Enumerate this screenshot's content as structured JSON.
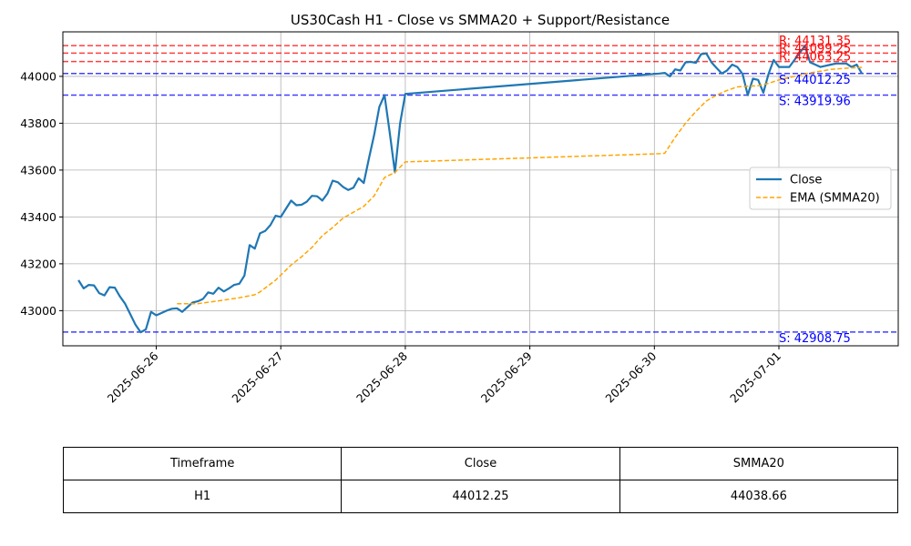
{
  "chart_data": {
    "type": "line",
    "title": "US30Cash H1 - Close vs SMMA20 + Support/Resistance",
    "xlabel": "",
    "ylabel": "",
    "xlim": [
      "2025-06-25 06:00",
      "2025-07-01 23:00"
    ],
    "ylim": [
      42850,
      44190
    ],
    "yticks": [
      43000,
      43200,
      43400,
      43600,
      43800,
      44000
    ],
    "xticks": [
      "2025-06-26",
      "2025-06-27",
      "2025-06-28",
      "2025-06-29",
      "2025-06-30",
      "2025-07-01"
    ],
    "grid": true,
    "legend_position": "center-right",
    "series": [
      {
        "name": "Close",
        "color": "#1f77b4",
        "style": "solid",
        "points": [
          [
            "2025-06-25 09:00",
            43130
          ],
          [
            "2025-06-25 10:00",
            43095
          ],
          [
            "2025-06-25 11:00",
            43110
          ],
          [
            "2025-06-25 12:00",
            43108
          ],
          [
            "2025-06-25 13:00",
            43075
          ],
          [
            "2025-06-25 14:00",
            43065
          ],
          [
            "2025-06-25 15:00",
            43100
          ],
          [
            "2025-06-25 16:00",
            43098
          ],
          [
            "2025-06-25 17:00",
            43060
          ],
          [
            "2025-06-25 18:00",
            43030
          ],
          [
            "2025-06-25 19:00",
            42985
          ],
          [
            "2025-06-25 20:00",
            42940
          ],
          [
            "2025-06-25 21:00",
            42908
          ],
          [
            "2025-06-25 22:00",
            42920
          ],
          [
            "2025-06-25 23:00",
            42995
          ],
          [
            "2025-06-26 00:00",
            42980
          ],
          [
            "2025-06-26 01:00",
            42990
          ],
          [
            "2025-06-26 02:00",
            43000
          ],
          [
            "2025-06-26 03:00",
            43008
          ],
          [
            "2025-06-26 04:00",
            43010
          ],
          [
            "2025-06-26 05:00",
            42995
          ],
          [
            "2025-06-26 06:00",
            43015
          ],
          [
            "2025-06-26 07:00",
            43035
          ],
          [
            "2025-06-26 08:00",
            43040
          ],
          [
            "2025-06-26 09:00",
            43050
          ],
          [
            "2025-06-26 10:00",
            43078
          ],
          [
            "2025-06-26 11:00",
            43072
          ],
          [
            "2025-06-26 12:00",
            43098
          ],
          [
            "2025-06-26 13:00",
            43082
          ],
          [
            "2025-06-26 14:00",
            43095
          ],
          [
            "2025-06-26 15:00",
            43110
          ],
          [
            "2025-06-26 16:00",
            43115
          ],
          [
            "2025-06-26 17:00",
            43150
          ],
          [
            "2025-06-26 18:00",
            43280
          ],
          [
            "2025-06-26 19:00",
            43265
          ],
          [
            "2025-06-26 20:00",
            43330
          ],
          [
            "2025-06-26 21:00",
            43340
          ],
          [
            "2025-06-26 22:00",
            43365
          ],
          [
            "2025-06-26 23:00",
            43405
          ],
          [
            "2025-06-27 00:00",
            43400
          ],
          [
            "2025-06-27 01:00",
            43435
          ],
          [
            "2025-06-27 02:00",
            43470
          ],
          [
            "2025-06-27 03:00",
            43450
          ],
          [
            "2025-06-27 04:00",
            43452
          ],
          [
            "2025-06-27 05:00",
            43465
          ],
          [
            "2025-06-27 06:00",
            43490
          ],
          [
            "2025-06-27 07:00",
            43488
          ],
          [
            "2025-06-27 08:00",
            43470
          ],
          [
            "2025-06-27 09:00",
            43500
          ],
          [
            "2025-06-27 10:00",
            43555
          ],
          [
            "2025-06-27 11:00",
            43548
          ],
          [
            "2025-06-27 12:00",
            43528
          ],
          [
            "2025-06-27 13:00",
            43515
          ],
          [
            "2025-06-27 14:00",
            43525
          ],
          [
            "2025-06-27 15:00",
            43565
          ],
          [
            "2025-06-27 16:00",
            43545
          ],
          [
            "2025-06-27 17:00",
            43650
          ],
          [
            "2025-06-27 18:00",
            43750
          ],
          [
            "2025-06-27 19:00",
            43870
          ],
          [
            "2025-06-27 20:00",
            43920
          ],
          [
            "2025-06-27 21:00",
            43760
          ],
          [
            "2025-06-27 22:00",
            43590
          ],
          [
            "2025-06-27 23:00",
            43800
          ],
          [
            "2025-06-28 00:00",
            43925
          ],
          [
            "2025-06-30 01:00",
            44012
          ],
          [
            "2025-06-30 02:00",
            44015
          ],
          [
            "2025-06-30 03:00",
            44000
          ],
          [
            "2025-06-30 04:00",
            44030
          ],
          [
            "2025-06-30 05:00",
            44025
          ],
          [
            "2025-06-30 06:00",
            44060
          ],
          [
            "2025-06-30 07:00",
            44062
          ],
          [
            "2025-06-30 08:00",
            44058
          ],
          [
            "2025-06-30 09:00",
            44095
          ],
          [
            "2025-06-30 10:00",
            44098
          ],
          [
            "2025-06-30 11:00",
            44060
          ],
          [
            "2025-06-30 12:00",
            44035
          ],
          [
            "2025-06-30 13:00",
            44012
          ],
          [
            "2025-06-30 14:00",
            44025
          ],
          [
            "2025-06-30 15:00",
            44050
          ],
          [
            "2025-06-30 16:00",
            44040
          ],
          [
            "2025-06-30 17:00",
            44010
          ],
          [
            "2025-06-30 18:00",
            43920
          ],
          [
            "2025-06-30 19:00",
            43990
          ],
          [
            "2025-06-30 20:00",
            43985
          ],
          [
            "2025-06-30 21:00",
            43930
          ],
          [
            "2025-06-30 22:00",
            44010
          ],
          [
            "2025-06-30 23:00",
            44070
          ],
          [
            "2025-07-01 00:00",
            44040
          ],
          [
            "2025-07-01 01:00",
            44040
          ],
          [
            "2025-07-01 02:00",
            44040
          ],
          [
            "2025-07-01 03:00",
            44070
          ],
          [
            "2025-07-01 04:00",
            44100
          ],
          [
            "2025-07-01 05:00",
            44130
          ],
          [
            "2025-07-01 06:00",
            44060
          ],
          [
            "2025-07-01 07:00",
            44050
          ],
          [
            "2025-07-01 08:00",
            44040
          ],
          [
            "2025-07-01 09:00",
            44045
          ],
          [
            "2025-07-01 10:00",
            44050
          ],
          [
            "2025-07-01 11:00",
            44055
          ],
          [
            "2025-07-01 12:00",
            44055
          ],
          [
            "2025-07-01 13:00",
            44055
          ],
          [
            "2025-07-01 14:00",
            44040
          ],
          [
            "2025-07-01 15:00",
            44050
          ],
          [
            "2025-07-01 16:00",
            44012
          ]
        ]
      },
      {
        "name": "EMA (SMMA20)",
        "color": "#ffa500",
        "style": "dashed",
        "points": [
          [
            "2025-06-26 04:00",
            43030
          ],
          [
            "2025-06-26 08:00",
            43030
          ],
          [
            "2025-06-26 12:00",
            43042
          ],
          [
            "2025-06-26 16:00",
            43055
          ],
          [
            "2025-06-26 19:00",
            43068
          ],
          [
            "2025-06-26 20:00",
            43080
          ],
          [
            "2025-06-26 23:00",
            43130
          ],
          [
            "2025-06-27 02:00",
            43195
          ],
          [
            "2025-06-27 04:00",
            43230
          ],
          [
            "2025-06-27 06:00",
            43270
          ],
          [
            "2025-06-27 08:00",
            43320
          ],
          [
            "2025-06-27 10:00",
            43355
          ],
          [
            "2025-06-27 12:00",
            43395
          ],
          [
            "2025-06-27 14:00",
            43420
          ],
          [
            "2025-06-27 16:00",
            43445
          ],
          [
            "2025-06-27 18:00",
            43490
          ],
          [
            "2025-06-27 20:00",
            43568
          ],
          [
            "2025-06-27 22:00",
            43590
          ],
          [
            "2025-06-28 00:00",
            43635
          ],
          [
            "2025-06-30 01:00",
            43670
          ],
          [
            "2025-06-30 02:00",
            43672
          ],
          [
            "2025-06-30 04:00",
            43740
          ],
          [
            "2025-06-30 06:00",
            43800
          ],
          [
            "2025-06-30 08:00",
            43850
          ],
          [
            "2025-06-30 10:00",
            43895
          ],
          [
            "2025-06-30 12:00",
            43920
          ],
          [
            "2025-06-30 14:00",
            43940
          ],
          [
            "2025-06-30 16:00",
            43955
          ],
          [
            "2025-06-30 18:00",
            43958
          ],
          [
            "2025-06-30 20:00",
            43960
          ],
          [
            "2025-06-30 22:00",
            43970
          ],
          [
            "2025-07-01 00:00",
            43985
          ],
          [
            "2025-07-01 02:00",
            43995
          ],
          [
            "2025-07-01 04:00",
            44005
          ],
          [
            "2025-07-01 06:00",
            44015
          ],
          [
            "2025-07-01 08:00",
            44022
          ],
          [
            "2025-07-01 10:00",
            44030
          ],
          [
            "2025-07-01 12:00",
            44033
          ],
          [
            "2025-07-01 14:00",
            44036
          ],
          [
            "2025-07-01 16:00",
            44038
          ]
        ]
      }
    ],
    "levels": [
      {
        "kind": "resistance",
        "value": 44131.35,
        "label": "R: 44131.35",
        "color": "#ff0000"
      },
      {
        "kind": "resistance",
        "value": 44099.25,
        "label": "R: 44099.25",
        "color": "#ff0000"
      },
      {
        "kind": "resistance",
        "value": 44063.25,
        "label": "R: 44063.25",
        "color": "#ff0000"
      },
      {
        "kind": "support",
        "value": 44012.25,
        "label": "S: 44012.25",
        "color": "#0000ff"
      },
      {
        "kind": "support",
        "value": 43919.96,
        "label": "S: 43919.96",
        "color": "#0000ff"
      },
      {
        "kind": "support",
        "value": 42908.75,
        "label": "S: 42908.75",
        "color": "#0000ff"
      }
    ],
    "label_anchor_x": "2025-07-01 00:00"
  },
  "table": {
    "headers": [
      "Timeframe",
      "Close",
      "SMMA20"
    ],
    "rows": [
      [
        "H1",
        "44012.25",
        "44038.66"
      ]
    ]
  }
}
